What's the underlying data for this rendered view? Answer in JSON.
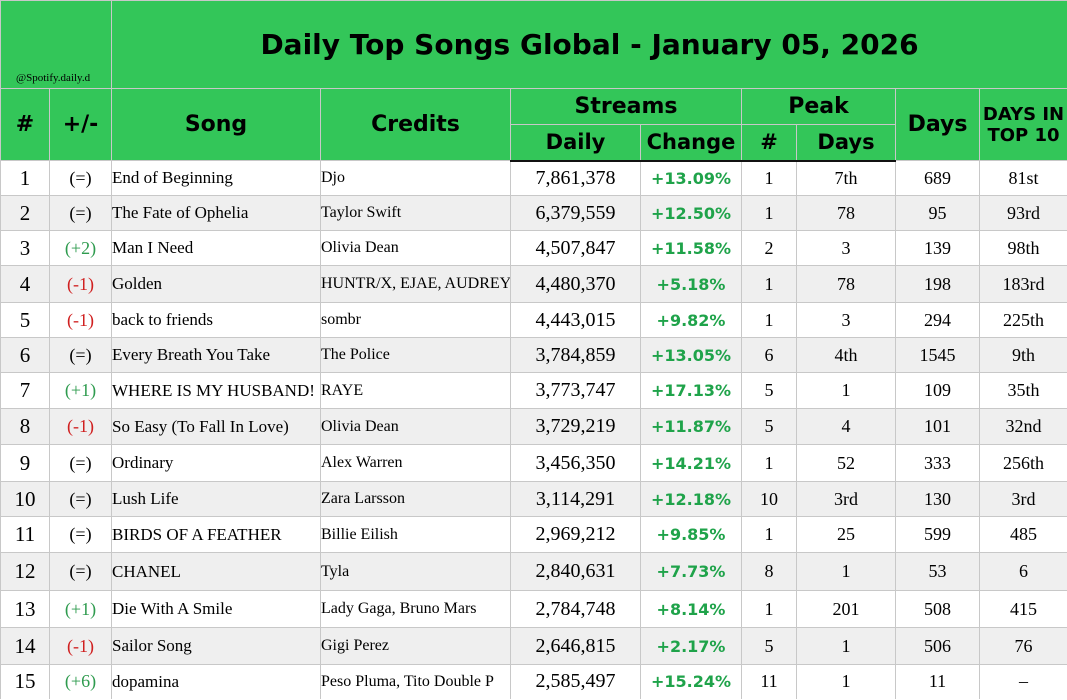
{
  "title": "Daily Top Songs Global - January 05, 2026",
  "handle": "@Spotify.daily.d",
  "headers": {
    "rank": "#",
    "move": "+/-",
    "song": "Song",
    "credits": "Credits",
    "streams": "Streams",
    "daily": "Daily",
    "change": "Change",
    "peak": "Peak",
    "peak_num": "#",
    "peak_days": "Days",
    "days": "Days",
    "days_top10": "DAYS IN TOP 10"
  },
  "colors": {
    "header_green": "#33c659",
    "change_green": "#1fa34a",
    "move_up": "#2e9b4e",
    "move_down": "#d02020"
  },
  "rows": [
    {
      "rank": "1",
      "move": "(=)",
      "song": "End of Beginning",
      "credits": "Djo",
      "daily": "7,861,378",
      "change": "+13.09%",
      "peak": "1",
      "peak_days": "7th",
      "days": "689",
      "top10": "81st"
    },
    {
      "rank": "2",
      "move": "(=)",
      "song": "The Fate of Ophelia",
      "credits": "Taylor Swift",
      "daily": "6,379,559",
      "change": "+12.50%",
      "peak": "1",
      "peak_days": "78",
      "days": "95",
      "top10": "93rd"
    },
    {
      "rank": "3",
      "move": "(+2)",
      "song": "Man I Need",
      "credits": "Olivia Dean",
      "daily": "4,507,847",
      "change": "+11.58%",
      "peak": "2",
      "peak_days": "3",
      "days": "139",
      "top10": "98th"
    },
    {
      "rank": "4",
      "move": "(-1)",
      "song": "Golden",
      "credits": "HUNTR/X, EJAE, AUDREY NUNA, REI AMI",
      "daily": "4,480,370",
      "change": "+5.18%",
      "peak": "1",
      "peak_days": "78",
      "days": "198",
      "top10": "183rd"
    },
    {
      "rank": "5",
      "move": "(-1)",
      "song": "back to friends",
      "credits": "sombr",
      "daily": "4,443,015",
      "change": "+9.82%",
      "peak": "1",
      "peak_days": "3",
      "days": "294",
      "top10": "225th"
    },
    {
      "rank": "6",
      "move": "(=)",
      "song": "Every Breath You Take",
      "credits": "The Police",
      "daily": "3,784,859",
      "change": "+13.05%",
      "peak": "6",
      "peak_days": "4th",
      "days": "1545",
      "top10": "9th"
    },
    {
      "rank": "7",
      "move": "(+1)",
      "song": "WHERE IS MY HUSBAND!",
      "credits": "RAYE",
      "daily": "3,773,747",
      "change": "+17.13%",
      "peak": "5",
      "peak_days": "1",
      "days": "109",
      "top10": "35th"
    },
    {
      "rank": "8",
      "move": "(-1)",
      "song": "So Easy (To Fall In Love)",
      "credits": "Olivia Dean",
      "daily": "3,729,219",
      "change": "+11.87%",
      "peak": "5",
      "peak_days": "4",
      "days": "101",
      "top10": "32nd"
    },
    {
      "rank": "9",
      "move": "(=)",
      "song": "Ordinary",
      "credits": "Alex Warren",
      "daily": "3,456,350",
      "change": "+14.21%",
      "peak": "1",
      "peak_days": "52",
      "days": "333",
      "top10": "256th"
    },
    {
      "rank": "10",
      "move": "(=)",
      "song": "Lush Life",
      "credits": "Zara Larsson",
      "daily": "3,114,291",
      "change": "+12.18%",
      "peak": "10",
      "peak_days": "3rd",
      "days": "130",
      "top10": "3rd"
    },
    {
      "rank": "11",
      "move": "(=)",
      "song": "BIRDS OF A FEATHER",
      "credits": "Billie Eilish",
      "daily": "2,969,212",
      "change": "+9.85%",
      "peak": "1",
      "peak_days": "25",
      "days": "599",
      "top10": "485"
    },
    {
      "rank": "12",
      "move": "(=)",
      "song": "CHANEL",
      "credits": "Tyla",
      "daily": "2,840,631",
      "change": "+7.73%",
      "peak": "8",
      "peak_days": "1",
      "days": "53",
      "top10": "6"
    },
    {
      "rank": "13",
      "move": "(+1)",
      "song": "Die With A Smile",
      "credits": "Lady Gaga, Bruno Mars",
      "daily": "2,784,748",
      "change": "+8.14%",
      "peak": "1",
      "peak_days": "201",
      "days": "508",
      "top10": "415"
    },
    {
      "rank": "14",
      "move": "(-1)",
      "song": "Sailor Song",
      "credits": "Gigi Perez",
      "daily": "2,646,815",
      "change": "+2.17%",
      "peak": "5",
      "peak_days": "1",
      "days": "506",
      "top10": "76"
    },
    {
      "rank": "15",
      "move": "(+6)",
      "song": "dopamina",
      "credits": "Peso Pluma, Tito Double P",
      "daily": "2,585,497",
      "change": "+15.24%",
      "peak": "11",
      "peak_days": "1",
      "days": "11",
      "top10": "–"
    }
  ]
}
